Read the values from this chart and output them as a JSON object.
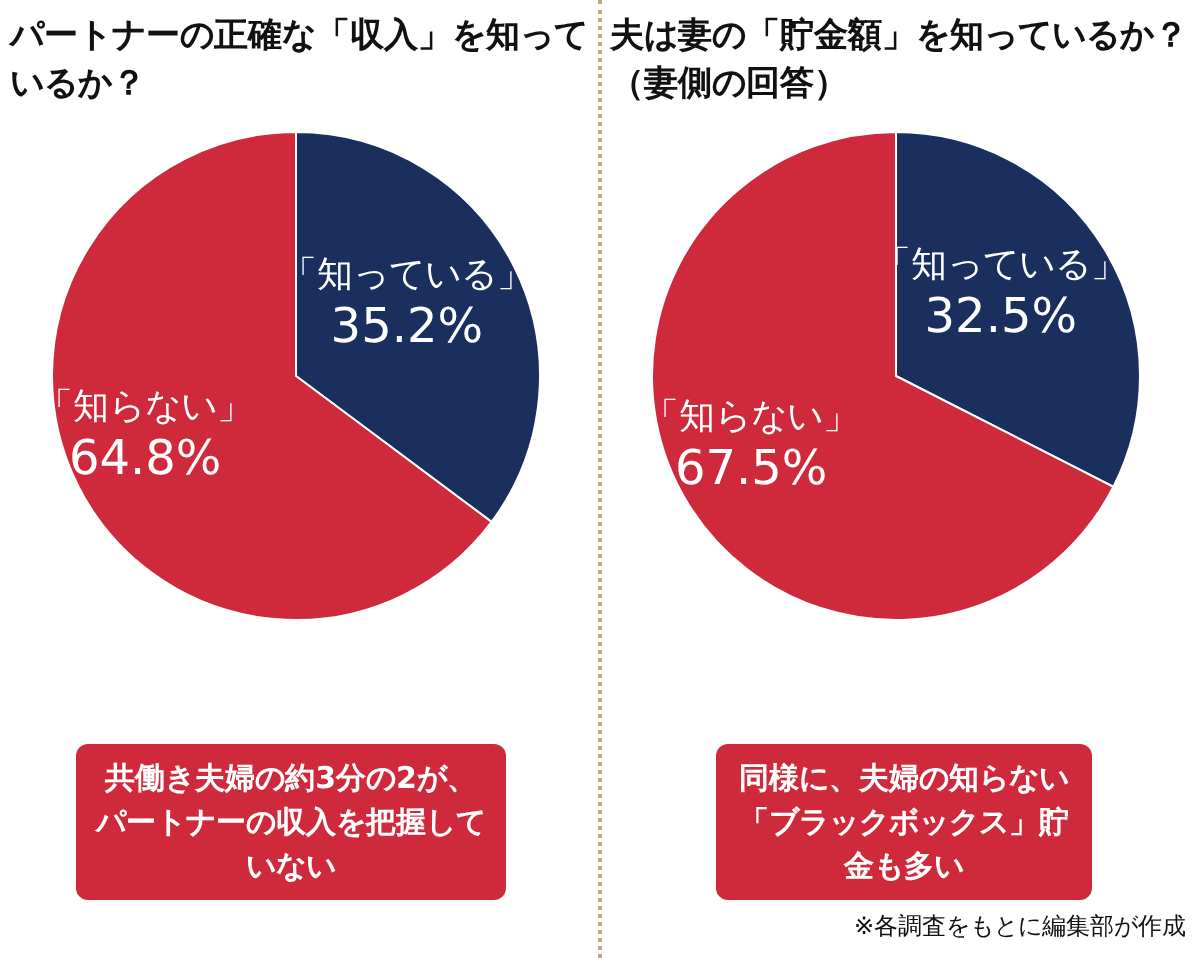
{
  "chart_data": [
    {
      "type": "pie",
      "title": "パートナーの正確な「収入」を知っているか？",
      "categories": [
        "「知っている」",
        "「知らない」"
      ],
      "values": [
        35.2,
        64.8
      ],
      "colors": [
        "#1b2f5e",
        "#cf2a3b"
      ],
      "value_labels": [
        "35.2%",
        "64.8%"
      ],
      "annotations": [
        "共働き夫婦の約3分の2が、パートナーの収入を把握していない"
      ]
    },
    {
      "type": "pie",
      "title": "夫は妻の「貯金額」を知っているか？",
      "subtitle": "（妻側の回答）",
      "categories": [
        "「知っている」",
        "「知らない」"
      ],
      "values": [
        32.5,
        67.5
      ],
      "colors": [
        "#1b2f5e",
        "#cf2a3b"
      ],
      "value_labels": [
        "32.5%",
        "67.5%"
      ],
      "annotations": [
        "同様に、夫婦の知らない「ブラックボックス」貯金も多い",
        "※各調査をもとに編集部が作成"
      ]
    }
  ]
}
